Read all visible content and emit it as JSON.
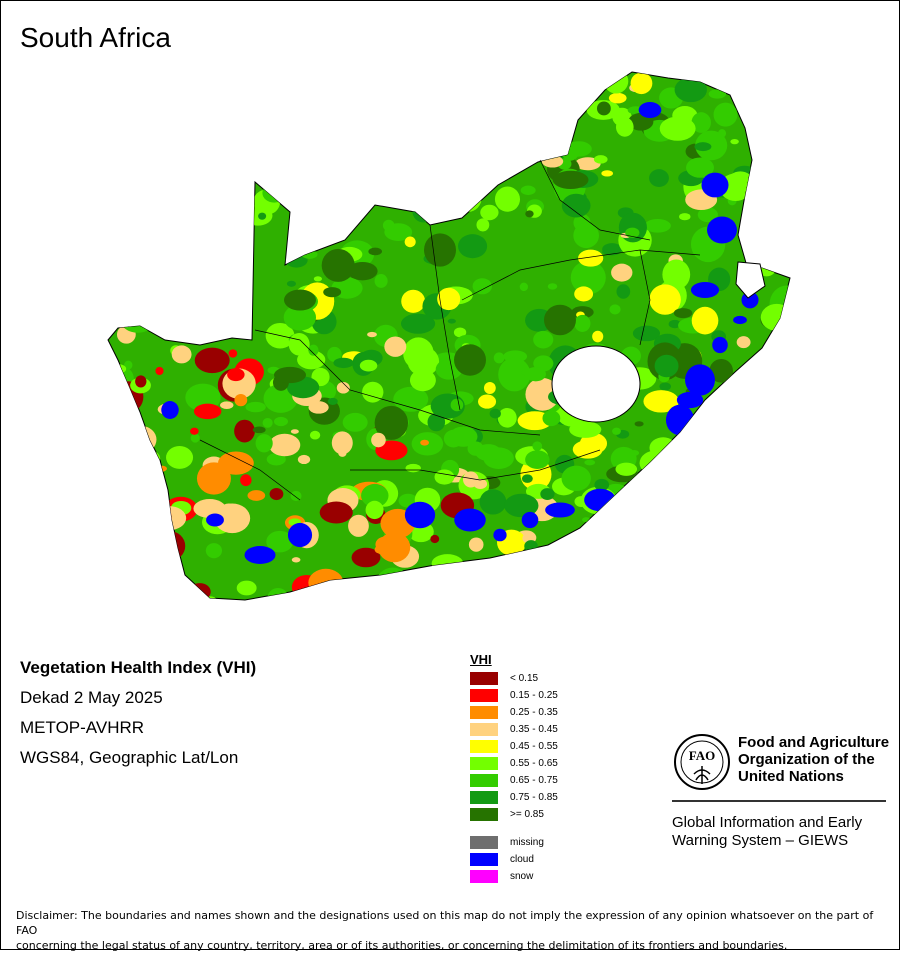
{
  "map": {
    "title": "South Africa"
  },
  "info": {
    "product": "Vegetation Health Index (VHI)",
    "period": "Dekad 2 May 2025",
    "sensor": "METOP-AVHRR",
    "projection": "WGS84, Geographic Lat/Lon"
  },
  "legend": {
    "title": "VHI",
    "classes": [
      {
        "label": "< 0.15",
        "color": "#990000"
      },
      {
        "label": "0.15 - 0.25",
        "color": "#ff0000"
      },
      {
        "label": "0.25 - 0.35",
        "color": "#ff8c00"
      },
      {
        "label": "0.35 - 0.45",
        "color": "#ffd27f"
      },
      {
        "label": "0.45 - 0.55",
        "color": "#ffff00"
      },
      {
        "label": "0.55 - 0.65",
        "color": "#73ff00"
      },
      {
        "label": "0.65 - 0.75",
        "color": "#33cc00"
      },
      {
        "label": "0.75 - 0.85",
        "color": "#139a13"
      },
      {
        "label": ">= 0.85",
        "color": "#267300"
      }
    ],
    "extras": [
      {
        "label": "missing",
        "color": "#6e6e6e"
      },
      {
        "label": "cloud",
        "color": "#0000ff"
      },
      {
        "label": "snow",
        "color": "#ff00ff"
      }
    ]
  },
  "fao": {
    "logo_text": "FAO",
    "name_line1": "Food and Agriculture",
    "name_line2": "Organization of the",
    "name_line3": "United Nations",
    "giews_line1": "Global Information and Early",
    "giews_line2": "Warning System – GIEWS"
  },
  "disclaimer": {
    "line1": "Disclaimer: The boundaries and names shown and the designations used on this map do not imply the expression of any opinion whatsoever on the part of FAO",
    "line2": "concerning the legal status of any country, territory, area or of its authorities, or concerning the delimitation of its frontiers and boundaries."
  }
}
